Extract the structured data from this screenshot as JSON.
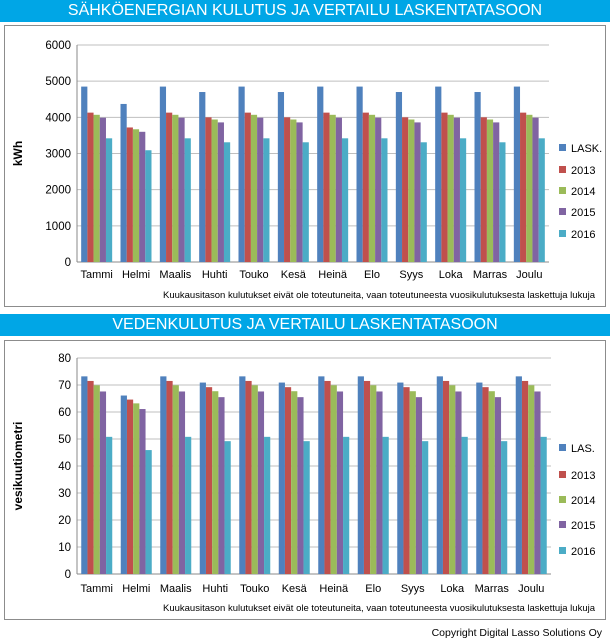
{
  "charts": [
    {
      "banner": "SÄHKÖENERGIAN KULUTUS JA VERTAILU LASKENTATASOON",
      "note": "Kuukausitason kulutukset eivät ole toteutuneita, vaan toteutuneesta vuosikulutuksesta laskettuja lukuja"
    },
    {
      "banner": "VEDENKULUTUS JA VERTAILU LASKENTATASOON",
      "note": "Kuukausitason kulutukset eivät ole toteutuneita, vaan toteutuneesta vuosikulutuksesta laskettuja lukuja"
    }
  ],
  "copyright": "Copyright Digital Lasso Solutions Oy",
  "colors": {
    "banner": "#00a6e6",
    "series": [
      "#4f81bd",
      "#c0504d",
      "#9bbb59",
      "#8064a2",
      "#4bacc6"
    ],
    "grid": "#bfbfbf"
  },
  "chart_data": [
    {
      "type": "bar",
      "title": "SÄHKÖENERGIAN KULUTUS JA VERTAILU LASKENTATASOON",
      "xlabel": "",
      "ylabel": "kWh",
      "ylim": [
        0,
        6000
      ],
      "yticks": [
        0,
        1000,
        2000,
        3000,
        4000,
        5000,
        6000
      ],
      "grid": true,
      "legend": "right",
      "categories": [
        "Tammi",
        "Helmi",
        "Maalis",
        "Huhti",
        "Touko",
        "Kesä",
        "Heinä",
        "Elo",
        "Syys",
        "Loka",
        "Marras",
        "Joulu"
      ],
      "series": [
        {
          "name": "LASK.",
          "values": [
            4850,
            4370,
            4850,
            4700,
            4850,
            4700,
            4850,
            4850,
            4700,
            4850,
            4700,
            4850
          ]
        },
        {
          "name": "2013",
          "values": [
            4130,
            3720,
            4130,
            4000,
            4130,
            4000,
            4130,
            4130,
            4000,
            4130,
            4000,
            4130
          ]
        },
        {
          "name": "2014",
          "values": [
            4070,
            3670,
            4070,
            3940,
            4070,
            3940,
            4070,
            4070,
            3940,
            4070,
            3940,
            4070
          ]
        },
        {
          "name": "2015",
          "values": [
            3990,
            3600,
            3990,
            3860,
            3990,
            3860,
            3990,
            3990,
            3860,
            3990,
            3860,
            3990
          ]
        },
        {
          "name": "2016",
          "values": [
            3420,
            3090,
            3420,
            3310,
            3420,
            3310,
            3420,
            3420,
            3310,
            3420,
            3310,
            3420
          ]
        }
      ]
    },
    {
      "type": "bar",
      "title": "VEDENKULUTUS JA VERTAILU LASKENTATASOON",
      "xlabel": "",
      "ylabel": "vesikuutiometri",
      "ylim": [
        0,
        80
      ],
      "yticks": [
        0,
        10,
        20,
        30,
        40,
        50,
        60,
        70,
        80
      ],
      "grid": true,
      "legend": "right",
      "categories": [
        "Tammi",
        "Helmi",
        "Maalis",
        "Huhti",
        "Touko",
        "Kesä",
        "Heinä",
        "Elo",
        "Syys",
        "Loka",
        "Marras",
        "Joulu"
      ],
      "series": [
        {
          "name": "LAS.",
          "values": [
            73.2,
            66.1,
            73.2,
            70.9,
            73.2,
            70.9,
            73.2,
            73.2,
            70.9,
            73.2,
            70.9,
            73.2
          ]
        },
        {
          "name": "2013",
          "values": [
            71.5,
            64.6,
            71.5,
            69.2,
            71.5,
            69.2,
            71.5,
            71.5,
            69.2,
            71.5,
            69.2,
            71.5
          ]
        },
        {
          "name": "2014",
          "values": [
            69.9,
            63.2,
            69.9,
            67.7,
            69.9,
            67.7,
            69.9,
            69.9,
            67.7,
            69.9,
            67.7,
            69.9
          ]
        },
        {
          "name": "2015",
          "values": [
            67.6,
            61.1,
            67.6,
            65.5,
            67.6,
            65.5,
            67.6,
            67.6,
            65.5,
            67.6,
            65.5,
            67.6
          ]
        },
        {
          "name": "2016",
          "values": [
            50.8,
            45.9,
            50.8,
            49.2,
            50.8,
            49.2,
            50.8,
            50.8,
            49.2,
            50.8,
            49.2,
            50.8
          ]
        }
      ]
    }
  ]
}
